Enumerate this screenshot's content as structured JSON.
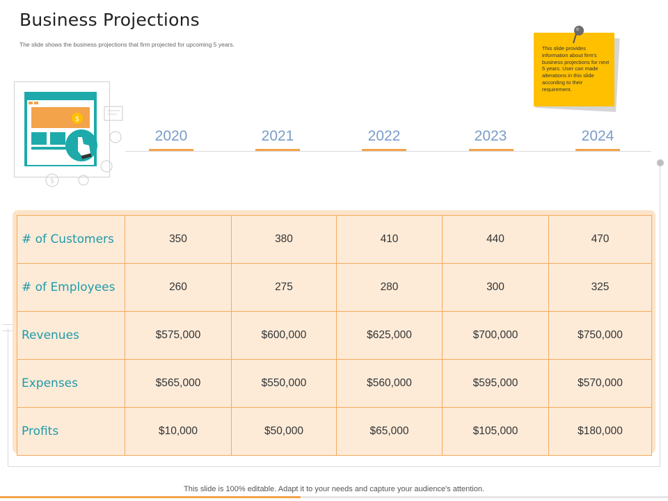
{
  "slide": {
    "title": "Business Projections",
    "subtitle": "The slide shows the business projections that firm projected for upcoming 5 years."
  },
  "sticky_note": {
    "text": "This slide provides information about firm's business projections for next 5 years. User can made alterations in this slide according to their requirement."
  },
  "timeline": {
    "years": [
      "2020",
      "2021",
      "2022",
      "2023",
      "2024"
    ]
  },
  "table": {
    "rows": [
      {
        "label": "# of Customers",
        "values": [
          "350",
          "380",
          "410",
          "440",
          "470"
        ]
      },
      {
        "label": "# of Employees",
        "values": [
          "260",
          "275",
          "280",
          "300",
          "325"
        ]
      },
      {
        "label": "Revenues",
        "values": [
          "$575,000",
          "$600,000",
          "$625,000",
          "$700,000",
          "$750,000"
        ]
      },
      {
        "label": "Expenses",
        "values": [
          "$565,000",
          "$550,000",
          "$560,000",
          "$595,000",
          "$570,000"
        ]
      },
      {
        "label": "Profits",
        "values": [
          "$10,000",
          "$50,000",
          "$65,000",
          "$105,000",
          "$180,000"
        ]
      }
    ]
  },
  "footer": {
    "text": "This slide is 100% editable. Adapt it to your needs and capture your audience's attention."
  },
  "colors": {
    "accent_orange": "#f3a34a",
    "year_blue": "#7a9cc9",
    "label_teal": "#1f9aa8",
    "sticky_yellow": "#ffc000",
    "table_fill": "#fdebd8"
  },
  "icons": [
    "pushpin-icon",
    "web-browser-illustration",
    "hand-click-icon",
    "dollar-coin-icon"
  ]
}
